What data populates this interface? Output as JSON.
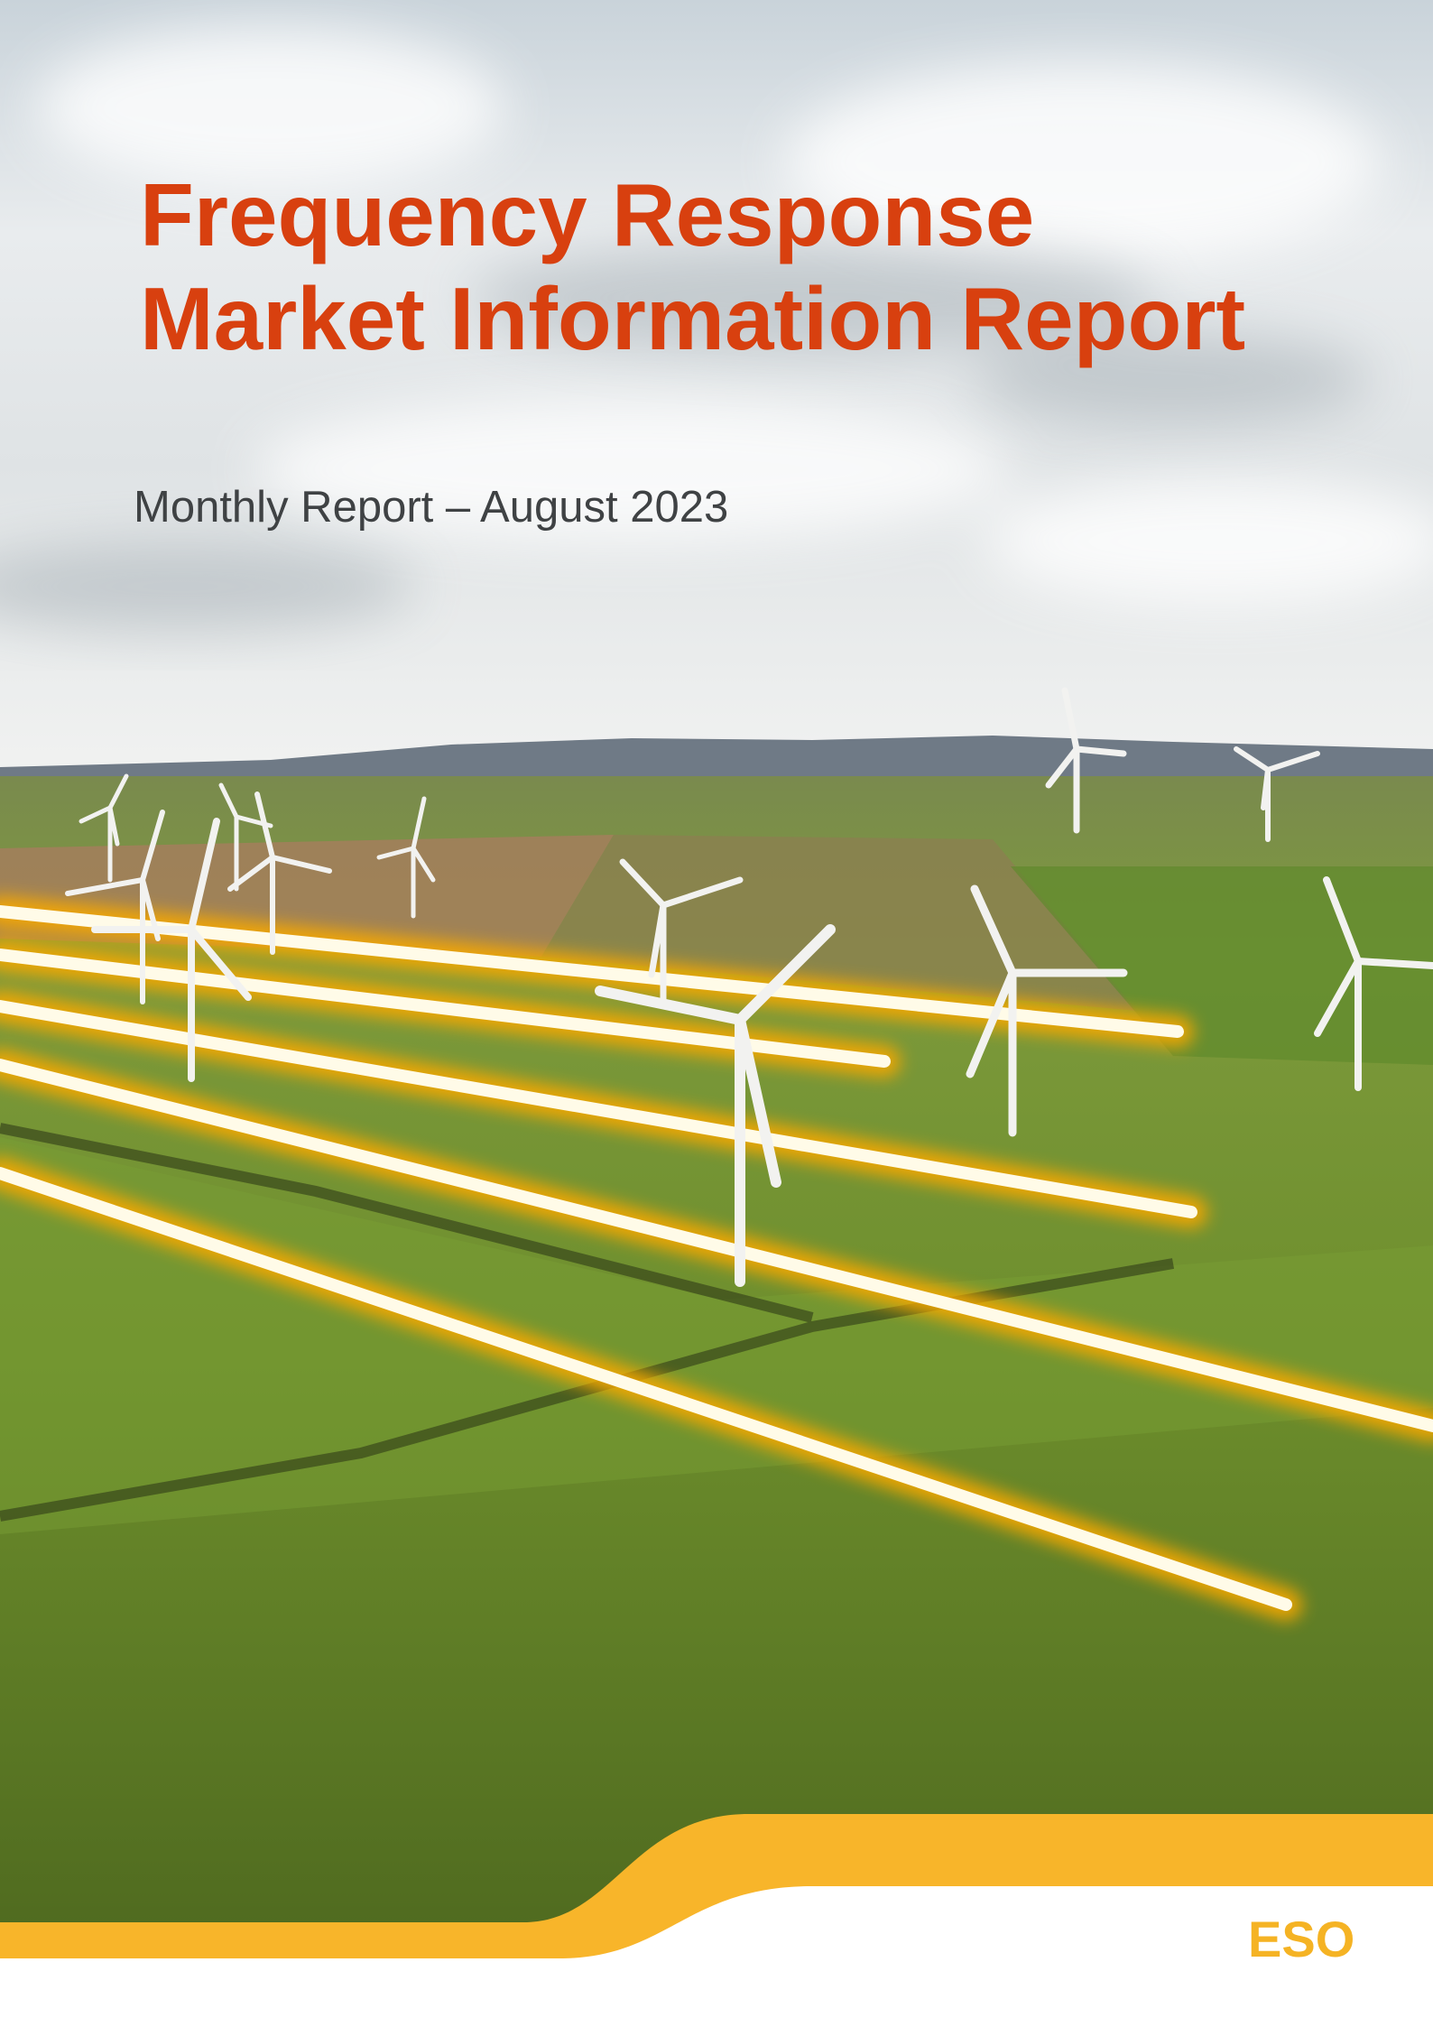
{
  "cover": {
    "title": [
      "Frequency Response",
      "Market Information Report"
    ],
    "subtitle": "Monthly Report – August 2023",
    "logo": "ESO"
  }
}
